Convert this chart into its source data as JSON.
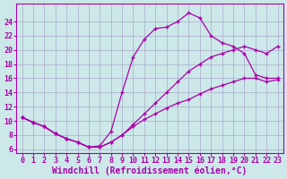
{
  "background_color": "#cce8e8",
  "grid_color": "#aaaacc",
  "line_color": "#aa00aa",
  "marker": "+",
  "xlabel": "Windchill (Refroidissement éolien,°C)",
  "xlim": [
    -0.5,
    23.5
  ],
  "ylim": [
    5.5,
    26.5
  ],
  "xticks": [
    0,
    1,
    2,
    3,
    4,
    5,
    6,
    7,
    8,
    9,
    10,
    11,
    12,
    13,
    14,
    15,
    16,
    17,
    18,
    19,
    20,
    21,
    22,
    23
  ],
  "yticks": [
    6,
    8,
    10,
    12,
    14,
    16,
    18,
    20,
    22,
    24
  ],
  "line1_x": [
    0,
    1,
    2,
    3,
    4,
    5,
    6,
    7,
    8,
    9,
    10,
    11,
    12,
    13,
    14,
    15,
    16,
    17,
    18,
    19,
    20,
    21,
    22,
    23
  ],
  "line1_y": [
    10.5,
    9.8,
    9.2,
    8.2,
    7.5,
    7.0,
    6.3,
    6.5,
    8.5,
    14.0,
    19.0,
    21.5,
    23.0,
    23.2,
    24.0,
    25.2,
    24.5,
    22.0,
    21.0,
    20.5,
    19.5,
    16.5,
    16.0,
    16.0
  ],
  "line2_x": [
    0,
    1,
    2,
    3,
    4,
    5,
    6,
    7,
    8,
    9,
    10,
    11,
    12,
    13,
    14,
    15,
    16,
    17,
    18,
    19,
    20,
    21,
    22,
    23
  ],
  "line2_y": [
    10.5,
    9.8,
    9.2,
    8.2,
    7.5,
    7.0,
    6.3,
    6.3,
    7.0,
    8.0,
    9.2,
    10.2,
    11.0,
    11.8,
    12.5,
    13.0,
    13.8,
    14.5,
    15.0,
    15.5,
    16.0,
    16.0,
    15.5,
    15.8
  ],
  "line3_x": [
    0,
    1,
    2,
    3,
    4,
    5,
    6,
    7,
    8,
    9,
    10,
    11,
    12,
    13,
    14,
    15,
    16,
    17,
    18,
    19,
    20,
    21,
    22,
    23
  ],
  "line3_y": [
    10.5,
    9.8,
    9.2,
    8.2,
    7.5,
    7.0,
    6.3,
    6.3,
    7.0,
    8.0,
    9.5,
    11.0,
    12.5,
    14.0,
    15.5,
    17.0,
    18.0,
    19.0,
    19.5,
    20.0,
    20.5,
    20.0,
    19.5,
    20.5
  ],
  "tick_fontsize": 6.0,
  "xlabel_fontsize": 7,
  "marker_size": 3.5,
  "linewidth": 0.9
}
